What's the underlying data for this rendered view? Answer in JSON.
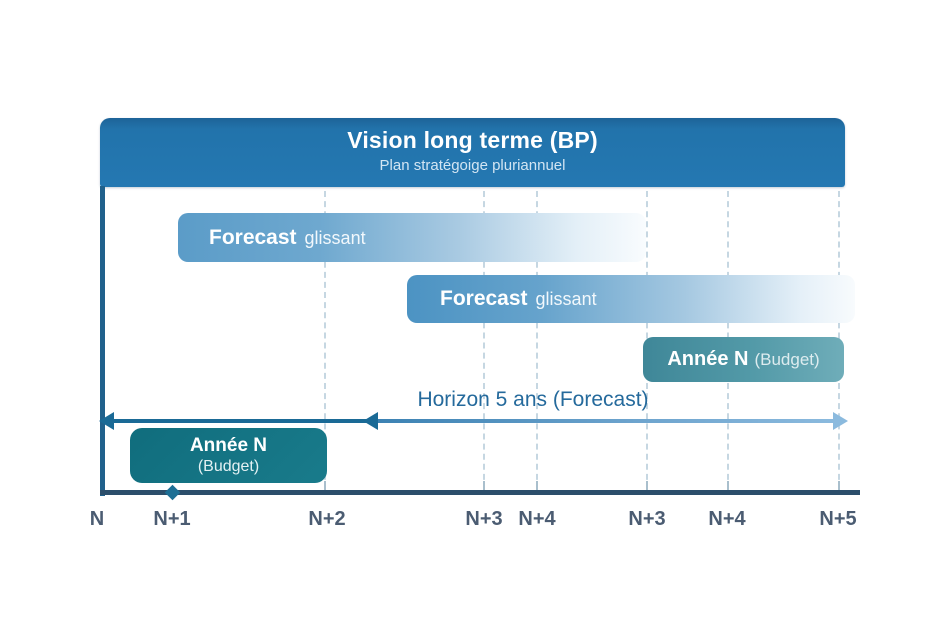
{
  "diagram": {
    "header": {
      "title": "Vision long terme (BP)",
      "subtitle": "Plan stratégoige pluriannuel"
    },
    "forecast_bar_1": {
      "bold": "Forecast",
      "regular": "glissant"
    },
    "forecast_bar_2": {
      "bold": "Forecast",
      "regular": "glissant"
    },
    "annee_bar_right": {
      "bold": "Année N",
      "regular": "(Budget)"
    },
    "horizon_label": "Horizon 5 ans (Forecast)",
    "annee_box_left": {
      "line1": "Année N",
      "line2": "(Budget)"
    },
    "axis_labels": [
      "N",
      "N+1",
      "N+2",
      "N+3",
      "N+4",
      "N+3",
      "N+4",
      "N+5"
    ],
    "colors": {
      "header_blue": "#2274ae",
      "forecast_gradient_start": "#5b9cc8",
      "teal_bar": "#4a93a1",
      "dark_teal_box": "#136e7e",
      "axis_dark": "#2c4e6b",
      "arrow_dark": "#1a6a96",
      "arrow_light": "#8bbade",
      "axis_label_color": "#4b5c72",
      "horizon_text_color": "#256a9c",
      "gridline_color": "#c6d7e2"
    }
  }
}
